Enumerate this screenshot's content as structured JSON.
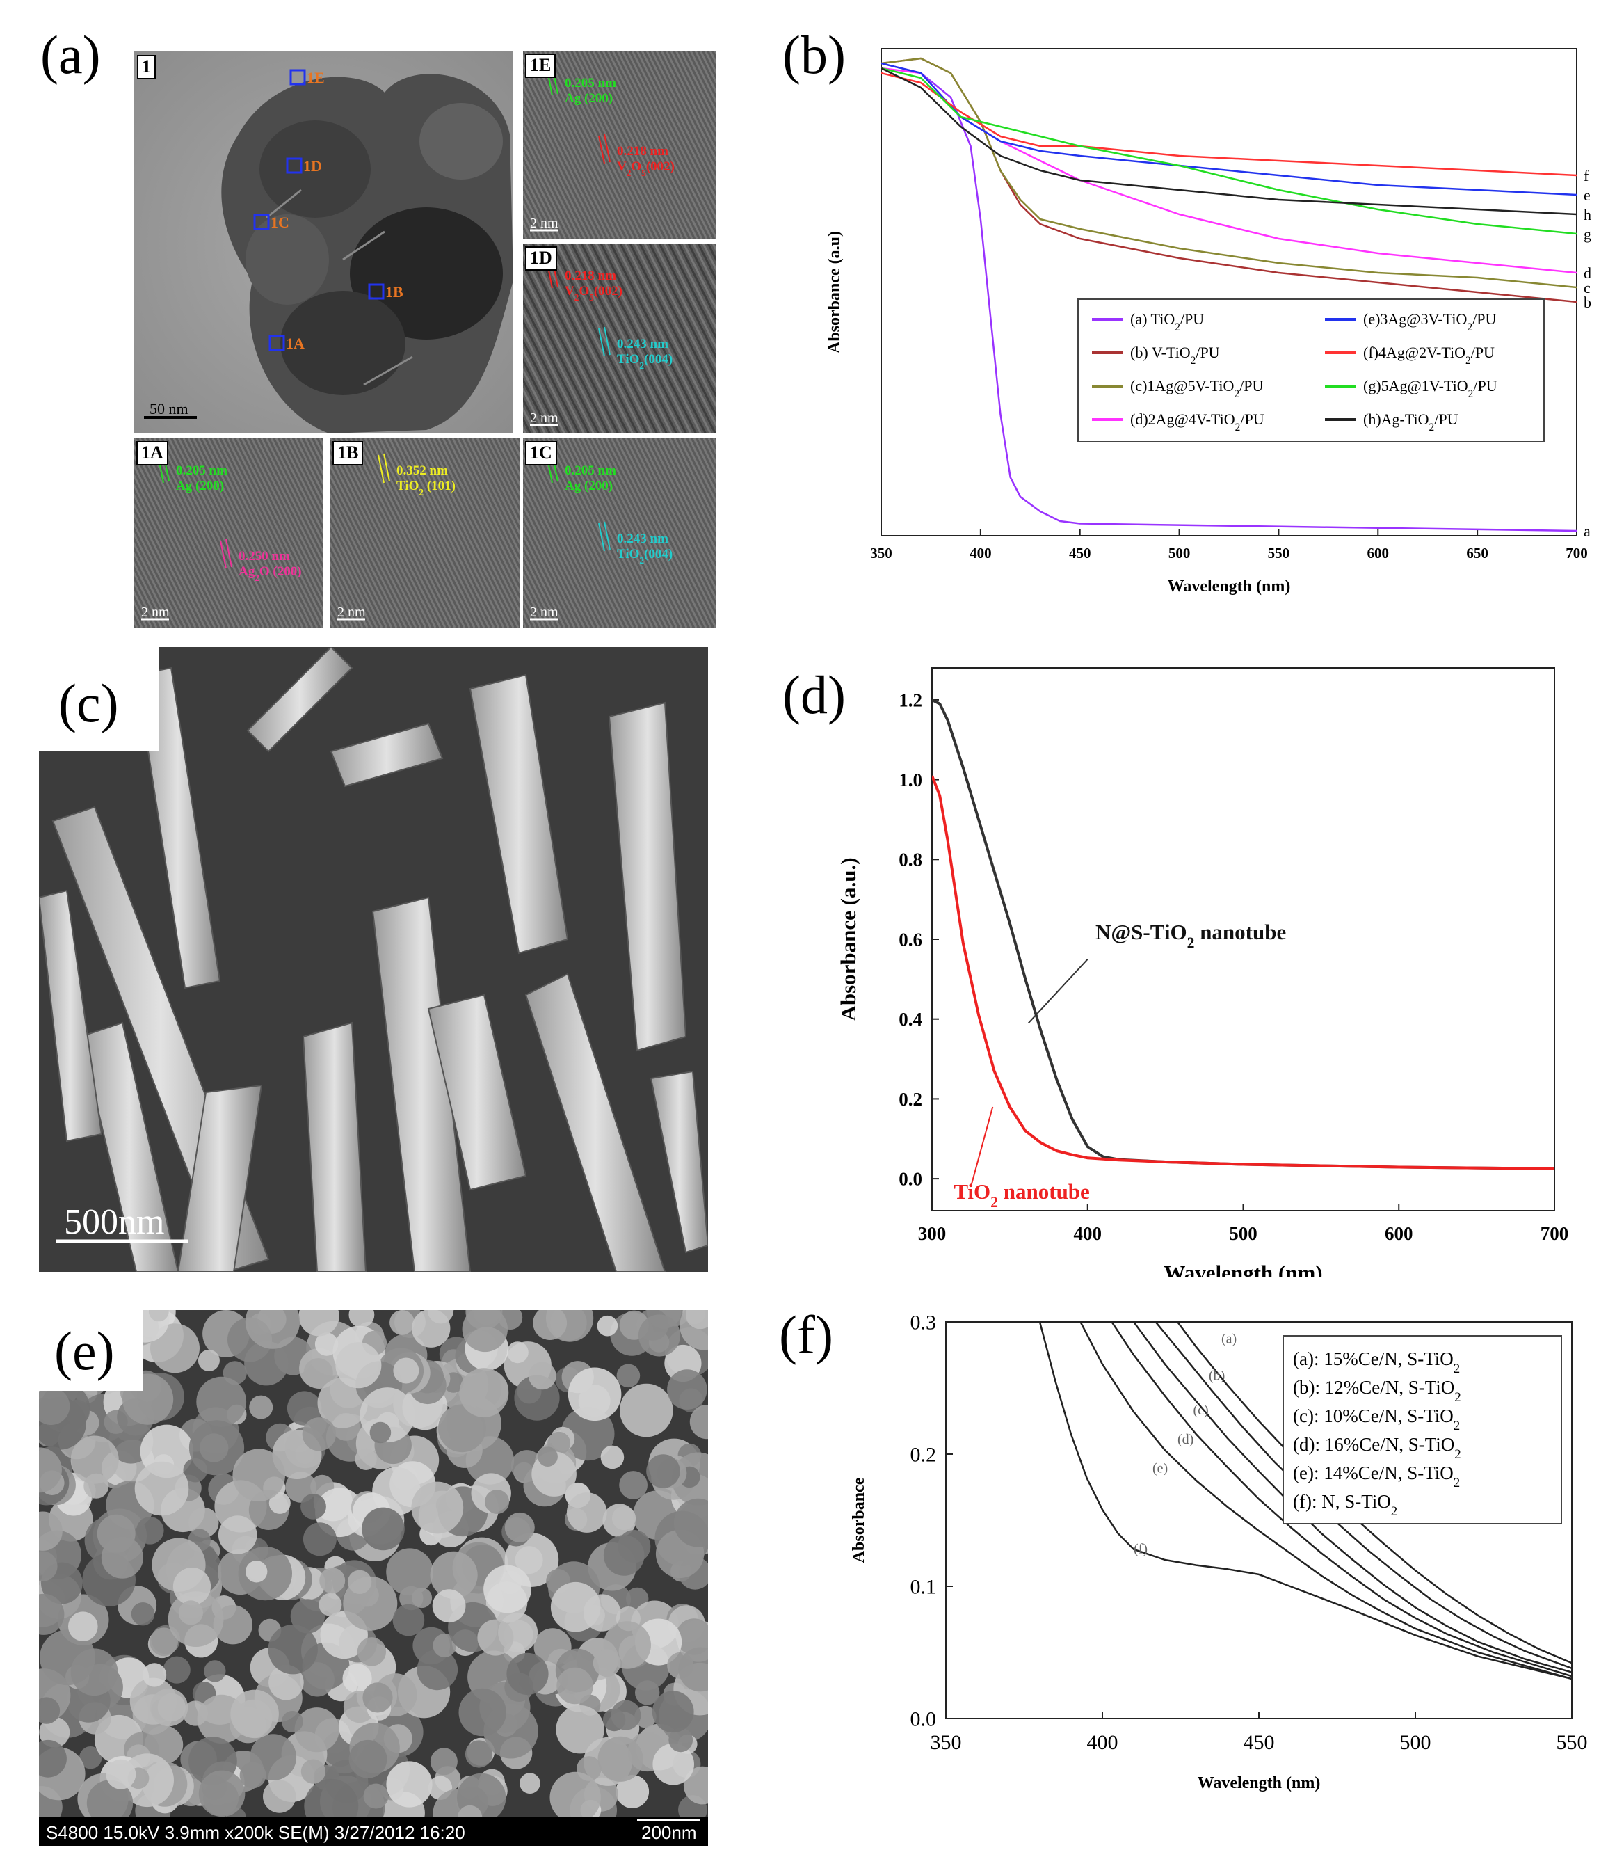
{
  "panels": {
    "a": {
      "label": "(a)",
      "main_tag": "1",
      "main_scale": "50 nm",
      "regions": [
        "1A",
        "1B",
        "1C",
        "1D",
        "1E"
      ],
      "insets": [
        {
          "tag": "1E",
          "scale": "2 nm",
          "notes": [
            {
              "text": "0.205 nm",
              "sub": "Ag (200)",
              "color": "#22dd22"
            },
            {
              "text": "0.218 nm",
              "sub": "V2O5(002)",
              "color": "#ee2222"
            }
          ]
        },
        {
          "tag": "1D",
          "scale": "2 nm",
          "notes": [
            {
              "text": "0.218 nm",
              "sub": "V2O5(002)",
              "color": "#ee2222"
            },
            {
              "text": "0.243 nm",
              "sub": "TiO2(004)",
              "color": "#22cccc"
            }
          ]
        },
        {
          "tag": "1A",
          "scale": "2 nm",
          "notes": [
            {
              "text": "0.205 nm",
              "sub": "Ag (200)",
              "color": "#22dd22"
            },
            {
              "text": "0.250 nm",
              "sub": "Ag2O (200)",
              "color": "#ee3399"
            }
          ]
        },
        {
          "tag": "1B",
          "scale": "2 nm",
          "notes": [
            {
              "text": "0.352 nm",
              "sub": "TiO2 (101)",
              "color": "#eeee22"
            }
          ]
        },
        {
          "tag": "1C",
          "scale": "2 nm",
          "notes": [
            {
              "text": "0.205 nm",
              "sub": "Ag (200)",
              "color": "#22dd22"
            },
            {
              "text": "0.243 nm",
              "sub": "TiO2(004)",
              "color": "#22cccc"
            }
          ]
        }
      ]
    },
    "b": {
      "label": "(b)"
    },
    "c": {
      "label": "(c)",
      "scale": "500nm"
    },
    "d": {
      "label": "(d)"
    },
    "e": {
      "label": "(e)",
      "info_bar": "S4800 15.0kV 3.9mm x200k SE(M) 3/27/2012 16:20",
      "scale": "200nm"
    },
    "f": {
      "label": "(f)"
    }
  },
  "chart_data": [
    {
      "id": "b",
      "type": "line",
      "xlabel": "Wavelength (nm)",
      "ylabel": "Absorbance (a.u)",
      "xlim": [
        350,
        700
      ],
      "ylim": [
        0,
        1
      ],
      "xticks": [
        "350",
        "400",
        "450",
        "500",
        "550",
        "600",
        "650",
        "700"
      ],
      "legend_position": "center",
      "series": [
        {
          "name": "(a) TiO2/PU",
          "end_label": "a",
          "color": "#9933ff",
          "x": [
            350,
            370,
            385,
            395,
            400,
            405,
            410,
            415,
            420,
            430,
            440,
            450,
            700
          ],
          "y": [
            0.97,
            0.95,
            0.9,
            0.8,
            0.65,
            0.45,
            0.25,
            0.12,
            0.08,
            0.05,
            0.03,
            0.025,
            0.01
          ]
        },
        {
          "name": "(b) V-TiO2/PU",
          "end_label": "b",
          "color": "#aa3333",
          "x": [
            350,
            370,
            385,
            400,
            410,
            420,
            430,
            450,
            500,
            550,
            600,
            650,
            700
          ],
          "y": [
            0.97,
            0.98,
            0.95,
            0.85,
            0.75,
            0.68,
            0.64,
            0.61,
            0.57,
            0.54,
            0.52,
            0.5,
            0.48
          ]
        },
        {
          "name": "(c)1Ag@5V-TiO2/PU",
          "end_label": "c",
          "color": "#888833",
          "x": [
            350,
            370,
            385,
            400,
            410,
            420,
            430,
            450,
            500,
            550,
            600,
            650,
            700
          ],
          "y": [
            0.97,
            0.98,
            0.95,
            0.85,
            0.75,
            0.69,
            0.65,
            0.63,
            0.59,
            0.56,
            0.54,
            0.53,
            0.51
          ]
        },
        {
          "name": "(d)2Ag@4V-TiO2/PU",
          "end_label": "d",
          "color": "#ff33ff",
          "x": [
            350,
            370,
            390,
            410,
            430,
            450,
            500,
            550,
            600,
            650,
            700
          ],
          "y": [
            0.96,
            0.95,
            0.86,
            0.81,
            0.77,
            0.73,
            0.66,
            0.61,
            0.58,
            0.56,
            0.54
          ]
        },
        {
          "name": "(e)3Ag@3V-TiO2/PU",
          "end_label": "e",
          "color": "#2233ee",
          "x": [
            350,
            370,
            390,
            410,
            430,
            450,
            500,
            550,
            600,
            650,
            700
          ],
          "y": [
            0.97,
            0.95,
            0.86,
            0.81,
            0.79,
            0.78,
            0.76,
            0.74,
            0.72,
            0.71,
            0.7
          ]
        },
        {
          "name": "(f)4Ag@2V-TiO2/PU",
          "end_label": "f",
          "color": "#ff3333",
          "x": [
            350,
            370,
            390,
            410,
            430,
            450,
            500,
            550,
            600,
            650,
            700
          ],
          "y": [
            0.95,
            0.93,
            0.87,
            0.82,
            0.8,
            0.8,
            0.78,
            0.77,
            0.76,
            0.75,
            0.74
          ]
        },
        {
          "name": "(g)5Ag@1V-TiO2/PU",
          "end_label": "g",
          "color": "#22dd22",
          "x": [
            350,
            370,
            390,
            410,
            430,
            450,
            500,
            550,
            600,
            650,
            700
          ],
          "y": [
            0.96,
            0.94,
            0.86,
            0.84,
            0.82,
            0.8,
            0.76,
            0.71,
            0.67,
            0.64,
            0.62
          ]
        },
        {
          "name": "(h)Ag-TiO2/PU",
          "end_label": "h",
          "color": "#222222",
          "x": [
            350,
            370,
            390,
            410,
            430,
            450,
            500,
            550,
            600,
            650,
            700
          ],
          "y": [
            0.96,
            0.92,
            0.84,
            0.78,
            0.75,
            0.73,
            0.71,
            0.69,
            0.68,
            0.67,
            0.66
          ]
        }
      ]
    },
    {
      "id": "d",
      "type": "line",
      "xlabel": "Wavelength (nm)",
      "ylabel": "Absorbance (a.u.)",
      "xlim": [
        300,
        700
      ],
      "ylim": [
        -0.08,
        1.28
      ],
      "xticks": [
        "300",
        "400",
        "500",
        "600",
        "700"
      ],
      "yticks": [
        "0.0",
        "0.2",
        "0.4",
        "0.6",
        "0.8",
        "1.0",
        "1.2"
      ],
      "series": [
        {
          "name": "N@S-TiO2 nanotube",
          "color": "#333333",
          "x": [
            300,
            305,
            310,
            320,
            330,
            340,
            350,
            360,
            370,
            380,
            390,
            400,
            410,
            420,
            450,
            500,
            600,
            700
          ],
          "y": [
            1.2,
            1.19,
            1.15,
            1.03,
            0.9,
            0.77,
            0.64,
            0.5,
            0.37,
            0.25,
            0.15,
            0.08,
            0.055,
            0.048,
            0.042,
            0.036,
            0.029,
            0.025
          ]
        },
        {
          "name": "TiO2 nanotube",
          "color": "#ee2222",
          "x": [
            300,
            305,
            310,
            315,
            320,
            330,
            340,
            350,
            360,
            370,
            380,
            390,
            400,
            420,
            450,
            500,
            600,
            700
          ],
          "y": [
            1.01,
            0.96,
            0.85,
            0.72,
            0.59,
            0.41,
            0.27,
            0.18,
            0.12,
            0.09,
            0.07,
            0.06,
            0.052,
            0.047,
            0.042,
            0.036,
            0.029,
            0.025
          ]
        }
      ]
    },
    {
      "id": "f",
      "type": "line",
      "xlabel": "Wavelength (nm)",
      "ylabel": "Absorbance",
      "xlim": [
        350,
        550
      ],
      "ylim": [
        0,
        0.3
      ],
      "xticks": [
        "350",
        "400",
        "450",
        "500",
        "550"
      ],
      "yticks": [
        "0.0",
        "0.1",
        "0.2",
        "0.3"
      ],
      "legend_position": "top-right",
      "series": [
        {
          "name": "(a): 15%Ce/N, S-TiO2",
          "tag": "(a)",
          "x": [
            424,
            430,
            440,
            450,
            460,
            470,
            480,
            490,
            500,
            510,
            520,
            530,
            540,
            550
          ],
          "y": [
            0.3,
            0.281,
            0.252,
            0.225,
            0.2,
            0.176,
            0.153,
            0.132,
            0.112,
            0.094,
            0.078,
            0.064,
            0.052,
            0.042
          ]
        },
        {
          "name": "(b): 12%Ce/N, S-TiO2",
          "tag": "(b)",
          "x": [
            417,
            425,
            435,
            445,
            455,
            465,
            475,
            485,
            495,
            505,
            515,
            525,
            535,
            550
          ],
          "y": [
            0.3,
            0.277,
            0.248,
            0.22,
            0.194,
            0.171,
            0.148,
            0.127,
            0.108,
            0.09,
            0.075,
            0.062,
            0.051,
            0.038
          ]
        },
        {
          "name": "(c): 10%Ce/N, S-TiO2",
          "tag": "(c)",
          "x": [
            410,
            420,
            430,
            440,
            450,
            460,
            470,
            480,
            490,
            500,
            510,
            520,
            535,
            550
          ],
          "y": [
            0.3,
            0.268,
            0.24,
            0.212,
            0.187,
            0.163,
            0.14,
            0.12,
            0.101,
            0.084,
            0.07,
            0.058,
            0.045,
            0.035
          ]
        },
        {
          "name": "(d): 16%Ce/N, S-TiO2",
          "tag": "(d)",
          "x": [
            403,
            410,
            420,
            430,
            440,
            450,
            460,
            470,
            480,
            490,
            500,
            510,
            525,
            550
          ],
          "y": [
            0.3,
            0.275,
            0.244,
            0.215,
            0.19,
            0.166,
            0.145,
            0.125,
            0.107,
            0.09,
            0.076,
            0.064,
            0.05,
            0.032
          ]
        },
        {
          "name": "(e): 14%Ce/N, S-TiO2",
          "tag": "(e)",
          "x": [
            393,
            400,
            410,
            420,
            430,
            440,
            450,
            460,
            470,
            480,
            490,
            500,
            520,
            550
          ],
          "y": [
            0.3,
            0.268,
            0.232,
            0.203,
            0.18,
            0.16,
            0.142,
            0.125,
            0.108,
            0.093,
            0.08,
            0.068,
            0.05,
            0.03
          ]
        },
        {
          "name": "(f): N, S-TiO2",
          "tag": "(f)",
          "x": [
            380,
            385,
            390,
            395,
            400,
            405,
            410,
            420,
            430,
            440,
            450,
            460,
            480,
            500,
            520,
            550
          ],
          "y": [
            0.3,
            0.255,
            0.215,
            0.182,
            0.158,
            0.14,
            0.128,
            0.12,
            0.116,
            0.113,
            0.109,
            0.1,
            0.082,
            0.063,
            0.047,
            0.03
          ]
        }
      ]
    }
  ]
}
